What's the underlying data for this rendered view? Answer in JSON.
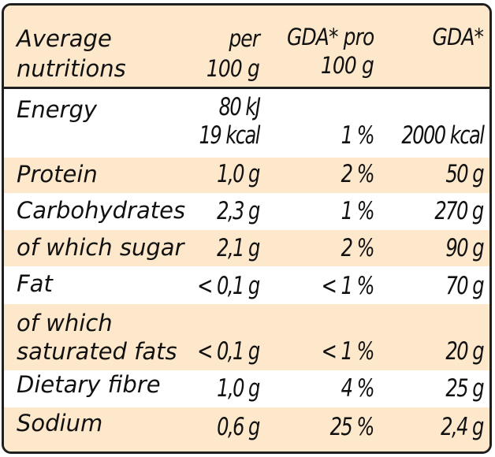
{
  "colors": {
    "shaded_row": "#fde8cb",
    "plain_row": "#ffffff",
    "border": "#1f1f1f"
  },
  "header": {
    "col0": [
      "Average",
      "nutritions"
    ],
    "col1": [
      "per",
      "100 g"
    ],
    "col2": [
      "GDA* pro",
      "100 g"
    ],
    "col3": [
      "GDA*"
    ]
  },
  "rows": [
    {
      "label": [
        "Energy"
      ],
      "per100": [
        "80 kJ",
        "19 kcal"
      ],
      "gda_pct": "1 %",
      "gda": "2000 kcal",
      "shaded": false
    },
    {
      "label": [
        "Protein"
      ],
      "per100": [
        "1,0 g"
      ],
      "gda_pct": "2 %",
      "gda": "50 g",
      "shaded": true
    },
    {
      "label": [
        "Carbohydrates"
      ],
      "per100": [
        "2,3 g"
      ],
      "gda_pct": "1 %",
      "gda": "270 g",
      "shaded": false
    },
    {
      "label": [
        "of which sugar"
      ],
      "per100": [
        "2,1 g"
      ],
      "gda_pct": "2 %",
      "gda": "90 g",
      "shaded": true
    },
    {
      "label": [
        "Fat"
      ],
      "per100": [
        "< 0,1 g"
      ],
      "gda_pct": "< 1 %",
      "gda": "70 g",
      "shaded": false
    },
    {
      "label": [
        "of which",
        "saturated fats"
      ],
      "per100": [
        "< 0,1 g"
      ],
      "gda_pct": "< 1 %",
      "gda": "20 g",
      "shaded": true
    },
    {
      "label": [
        "Dietary fibre"
      ],
      "per100": [
        "1,0 g"
      ],
      "gda_pct": "4 %",
      "gda": "25 g",
      "shaded": false
    },
    {
      "label": [
        "Sodium"
      ],
      "per100": [
        "0,6 g"
      ],
      "gda_pct": "25 %",
      "gda": "2,4 g",
      "shaded": true
    }
  ]
}
